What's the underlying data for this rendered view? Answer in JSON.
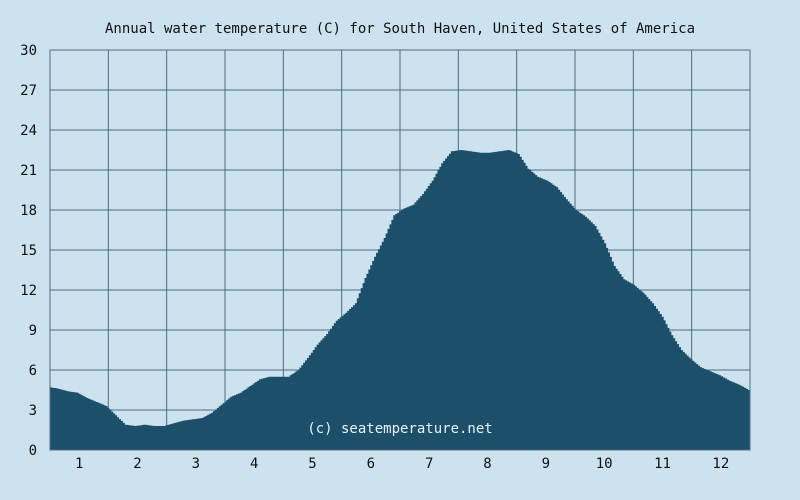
{
  "chart_data": {
    "type": "area",
    "title": "Annual water temperature (C) for South Haven, United States of America",
    "watermark": "(c) seatemperature.net",
    "xlabel": "",
    "ylabel": "",
    "x_tick_labels": [
      "1",
      "2",
      "3",
      "4",
      "5",
      "6",
      "7",
      "8",
      "9",
      "10",
      "11",
      "12"
    ],
    "y_ticks": [
      0,
      3,
      6,
      9,
      12,
      15,
      18,
      21,
      24,
      27,
      30
    ],
    "ylim": [
      0,
      30
    ],
    "grid": true,
    "colors": {
      "background": "#cce3ef",
      "plot_area": "#cce3ef",
      "fill": "#1c4f6a",
      "grid": "#4d6c80"
    },
    "series": [
      {
        "x": [
          1,
          5,
          10,
          15,
          20,
          25,
          30,
          35,
          40,
          45,
          50,
          55,
          60,
          65,
          70,
          75,
          80,
          85,
          90,
          95,
          100,
          105,
          110,
          115,
          120,
          125,
          130,
          135,
          140,
          145,
          150,
          155,
          160,
          165,
          170,
          175,
          180,
          185,
          190,
          195,
          200,
          205,
          210,
          215,
          220,
          225,
          230,
          235,
          240,
          245,
          250,
          255,
          260,
          265,
          270,
          275,
          280,
          285,
          290,
          295,
          300,
          305,
          310,
          315,
          320,
          325,
          330,
          335,
          340,
          345,
          350,
          355,
          360,
          365
        ],
        "y": [
          4.7,
          4.6,
          4.4,
          4.3,
          3.9,
          3.6,
          3.3,
          2.6,
          1.9,
          1.8,
          1.9,
          1.8,
          1.8,
          2.0,
          2.2,
          2.3,
          2.4,
          2.8,
          3.4,
          4.0,
          4.3,
          4.8,
          5.3,
          5.5,
          5.5,
          5.5,
          6.0,
          6.9,
          7.9,
          8.7,
          9.7,
          10.3,
          11.0,
          12.9,
          14.5,
          15.9,
          17.6,
          18.1,
          18.4,
          19.2,
          20.2,
          21.5,
          22.4,
          22.5,
          22.4,
          22.3,
          22.3,
          22.4,
          22.5,
          22.2,
          21.1,
          20.5,
          20.2,
          19.7,
          18.8,
          18.0,
          17.5,
          16.8,
          15.5,
          13.8,
          12.8,
          12.4,
          11.8,
          11.0,
          10.0,
          8.6,
          7.5,
          6.8,
          6.2,
          5.9,
          5.6,
          5.2,
          4.9,
          4.5
        ]
      }
    ]
  }
}
